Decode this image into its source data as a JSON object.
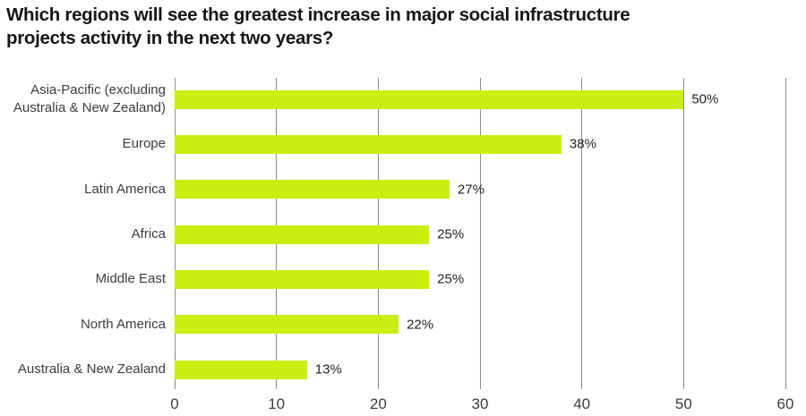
{
  "header": {
    "title_lines": [
      "Which regions will see the greatest increase in major social infrastructure",
      "projects activity in the next two years?"
    ]
  },
  "colors": {
    "bar": "#CBEE10",
    "gridline": "#8C8C8C",
    "title_text": "#161616",
    "category_text": "#3C3C3C",
    "value_text": "#1F1F1F"
  },
  "chart_data": {
    "type": "bar",
    "orientation": "horizontal",
    "title": "Which regions will see the greatest increase in major social infrastructure projects activity in the next two years?",
    "categories": [
      "Asia-Pacific (excluding\nAustralia & New Zealand)",
      "Europe",
      "Latin America",
      "Africa",
      "Middle East",
      "North America",
      "Australia & New Zealand"
    ],
    "values": [
      50,
      38,
      27,
      25,
      25,
      22,
      13
    ],
    "value_labels": [
      "50%",
      "38%",
      "27%",
      "25%",
      "25%",
      "22%",
      "13%"
    ],
    "xlabel": "",
    "ylabel": "",
    "xlim": [
      0,
      60
    ],
    "x_ticks": [
      0,
      10,
      20,
      30,
      40,
      50,
      60
    ],
    "x_tick_labels": [
      "0",
      "10",
      "20",
      "30",
      "40",
      "50",
      "60"
    ],
    "grid": "vertical",
    "legend": "none"
  }
}
